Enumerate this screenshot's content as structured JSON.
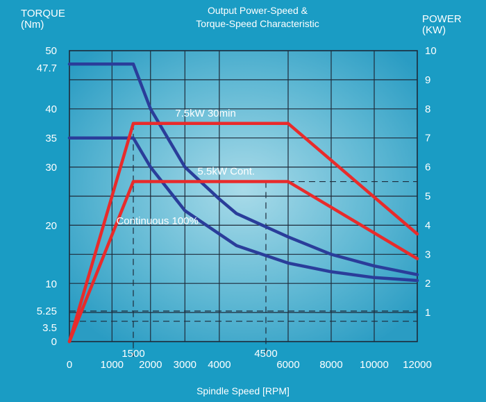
{
  "chart_data": {
    "type": "line",
    "title": "Output Power-Speed & Torque-Speed Characteristic",
    "title_lines": [
      "Output Power-Speed &",
      "Torque-Speed Characteristic"
    ],
    "xlabel": "Spindle Speed [RPM]",
    "ylabel_left": [
      "TORQUE",
      "(Nm)"
    ],
    "ylabel_right": [
      "POWER",
      "(KW)"
    ],
    "x_axis_note": "piecewise x-scale: 0-1500 and 1500-6000 and 6000-12000 rpm segments",
    "x_ticks": [
      "0",
      "1000",
      "2000",
      "3000",
      "4000",
      "6000",
      "8000",
      "10000",
      "12000"
    ],
    "x_ticks_upper": [
      "1500",
      "4500"
    ],
    "left_ticks": [
      "50",
      "47.7",
      "40",
      "35",
      "30",
      "20",
      "10",
      "5.25",
      "3.5",
      "0"
    ],
    "right_ticks": [
      "10",
      "9",
      "8",
      "7",
      "6",
      "5",
      "4",
      "3",
      "2",
      "1"
    ],
    "ylim_left": [
      0,
      50
    ],
    "ylim_right": [
      0,
      10
    ],
    "grid": true,
    "annotations": [
      {
        "text": "7.5kW 30min",
        "x": 3600,
        "y_power": 7.5
      },
      {
        "text": "5.5kW Cont.",
        "x": 4200,
        "y_power": 5.5
      },
      {
        "text": "Continuous 100%",
        "x": 2200,
        "y_power": 3.8
      }
    ],
    "series": [
      {
        "axis": "left",
        "kind": "torque",
        "color": "#2a3d9a",
        "points": [
          [
            0,
            47.7
          ],
          [
            1500,
            47.7
          ],
          [
            2000,
            40
          ],
          [
            3000,
            30
          ],
          [
            4000,
            24.5
          ],
          [
            4500,
            22
          ],
          [
            6000,
            18
          ],
          [
            8000,
            15
          ],
          [
            10000,
            13
          ],
          [
            12000,
            11.5
          ]
        ]
      },
      {
        "axis": "left",
        "kind": "torque",
        "color": "#2a3d9a",
        "points": [
          [
            0,
            35
          ],
          [
            1500,
            35
          ],
          [
            2000,
            30
          ],
          [
            3000,
            22.5
          ],
          [
            4000,
            18.5
          ],
          [
            4500,
            16.5
          ],
          [
            6000,
            13.5
          ],
          [
            8000,
            12
          ],
          [
            10000,
            11
          ],
          [
            12000,
            10.5
          ]
        ]
      },
      {
        "axis": "right",
        "kind": "power",
        "color": "#e82b2b",
        "points": [
          [
            0,
            0
          ],
          [
            1500,
            7.5
          ],
          [
            6000,
            7.5
          ],
          [
            12000,
            3.7
          ]
        ]
      },
      {
        "axis": "right",
        "kind": "power",
        "color": "#e82b2b",
        "points": [
          [
            0,
            0
          ],
          [
            1500,
            5.5
          ],
          [
            6000,
            5.5
          ],
          [
            12000,
            2.85
          ]
        ]
      }
    ],
    "reference_lines": {
      "torque_h": [
        5.25,
        3.5
      ],
      "power_h": [
        5.5
      ],
      "speed_v": [
        1500,
        4500
      ]
    },
    "colors": {
      "torque": "#2a3d9a",
      "power": "#e82b2b",
      "background": "#1a9cc4"
    }
  }
}
